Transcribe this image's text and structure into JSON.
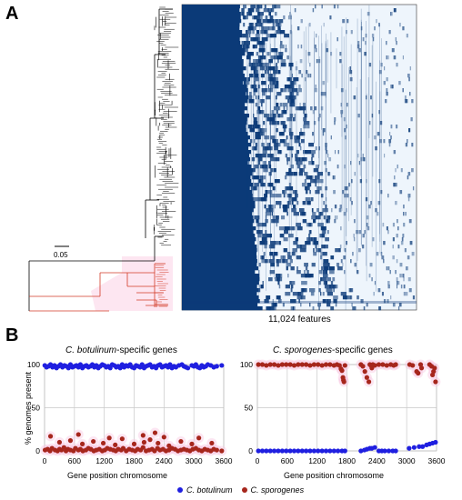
{
  "panels": {
    "a": "A",
    "b": "B"
  },
  "heatmap": {
    "caption": "11,024 features",
    "scale_label": "0.05",
    "colors": {
      "present": "#0b3a78",
      "absent": "#eef5fc",
      "tree_main": "#000000",
      "tree_highlight": "#d23a26",
      "highlight_bg": "#fde3ef"
    }
  },
  "chart_data": [
    {
      "type": "scatter",
      "title_italic": "C. botulinum",
      "title_rest": "-specific genes",
      "xlabel": "Gene position chromosome",
      "ylabel": "% genomes present",
      "xlim": [
        0,
        3600
      ],
      "ylim": [
        0,
        100
      ],
      "xticks": [
        0,
        600,
        1200,
        1800,
        2400,
        3000,
        3600
      ],
      "yticks": [
        0,
        50,
        100
      ],
      "grid": true,
      "series": [
        {
          "name": "C. botulinum",
          "color": "#1f1fe0",
          "x": [
            5,
            40,
            80,
            120,
            160,
            200,
            240,
            280,
            320,
            360,
            400,
            440,
            480,
            520,
            560,
            600,
            640,
            680,
            720,
            760,
            800,
            840,
            880,
            920,
            960,
            1000,
            1040,
            1080,
            1120,
            1160,
            1200,
            1240,
            1280,
            1320,
            1360,
            1400,
            1440,
            1480,
            1520,
            1560,
            1600,
            1640,
            1680,
            1720,
            1760,
            1800,
            1840,
            1880,
            1920,
            1960,
            2000,
            2040,
            2080,
            2120,
            2160,
            2200,
            2240,
            2280,
            2320,
            2360,
            2400,
            2440,
            2480,
            2520,
            2560,
            2600,
            2640,
            2700,
            2760,
            2800,
            2840,
            2880,
            2960,
            3000,
            3040,
            3080,
            3120,
            3160,
            3200,
            3240,
            3280,
            3340,
            3400,
            3460,
            3560
          ],
          "y": [
            99,
            97,
            98,
            100,
            97,
            99,
            96,
            98,
            100,
            97,
            99,
            98,
            96,
            100,
            97,
            98,
            99,
            97,
            100,
            96,
            98,
            99,
            97,
            98,
            100,
            97,
            99,
            96,
            98,
            100,
            99,
            97,
            98,
            96,
            100,
            99,
            97,
            98,
            96,
            100,
            97,
            99,
            98,
            100,
            97,
            96,
            99,
            98,
            97,
            100,
            96,
            98,
            99,
            100,
            97,
            98,
            96,
            99,
            100,
            97,
            98,
            99,
            97,
            100,
            96,
            98,
            97,
            99,
            100,
            98,
            97,
            96,
            99,
            98,
            100,
            97,
            96,
            99,
            97,
            98,
            100,
            99,
            97,
            98,
            99
          ]
        },
        {
          "name": "C. sporogenes",
          "color": "#a6261c",
          "x": [
            10,
            60,
            110,
            150,
            210,
            260,
            300,
            340,
            390,
            430,
            470,
            520,
            580,
            620,
            680,
            720,
            770,
            830,
            880,
            930,
            990,
            1040,
            1100,
            1160,
            1210,
            1260,
            1320,
            1380,
            1430,
            1480,
            1540,
            1580,
            1640,
            1700,
            1760,
            1820,
            1870,
            1930,
            1980,
            2040,
            2100,
            2160,
            2210,
            2270,
            2320,
            2380,
            2440,
            2500,
            2560,
            2620,
            2680,
            2740,
            2800,
            2860,
            2920,
            2980,
            3040,
            3100,
            3160,
            3220,
            3280,
            3340,
            3400,
            3460,
            3560,
            300,
            520,
            760,
            980,
            1180,
            1420,
            1560,
            1800,
            2000,
            2120,
            2280,
            2500,
            2740,
            2960,
            3360,
            120,
            680,
            1300,
            1980,
            2220,
            2400,
            3100
          ],
          "y": [
            1,
            2,
            0,
            3,
            1,
            0,
            2,
            1,
            4,
            0,
            2,
            1,
            0,
            3,
            1,
            2,
            0,
            1,
            3,
            2,
            0,
            1,
            2,
            0,
            1,
            3,
            2,
            1,
            0,
            2,
            1,
            3,
            0,
            2,
            1,
            0,
            2,
            1,
            4,
            0,
            1,
            2,
            0,
            3,
            1,
            2,
            0,
            1,
            3,
            2,
            0,
            1,
            2,
            1,
            0,
            2,
            3,
            1,
            0,
            2,
            1,
            0,
            2,
            1,
            0,
            10,
            12,
            8,
            11,
            9,
            7,
            14,
            8,
            10,
            13,
            9,
            6,
            11,
            8,
            9,
            17,
            19,
            15,
            18,
            21,
            16,
            15
          ]
        }
      ]
    },
    {
      "type": "scatter",
      "title_italic": "C. sporogenes",
      "title_rest": "-specific genes",
      "xlabel": "Gene position chromosome",
      "ylabel": "",
      "xlim": [
        0,
        3600
      ],
      "ylim": [
        0,
        100
      ],
      "xticks": [
        0,
        600,
        1200,
        1800,
        2400,
        3000,
        3600
      ],
      "yticks": [
        0,
        50,
        100
      ],
      "grid": true,
      "series": [
        {
          "name": "C. sporogenes",
          "color": "#a6261c",
          "x": [
            20,
            100,
            180,
            260,
            340,
            420,
            500,
            580,
            660,
            740,
            820,
            900,
            980,
            1060,
            1140,
            1220,
            1300,
            1380,
            1460,
            1540,
            1600,
            1650,
            1680,
            1700,
            1720,
            1730,
            1740,
            1760,
            2080,
            2120,
            2160,
            2200,
            2240,
            2260,
            2280,
            2300,
            2320,
            2360,
            2440,
            2520,
            2600,
            2680,
            2740,
            2780,
            3060,
            3120,
            3200,
            3230,
            3280,
            3300,
            3460,
            3500,
            3540,
            3560,
            3580,
            3520
          ],
          "y": [
            100,
            100,
            99,
            100,
            100,
            99,
            100,
            100,
            100,
            99,
            100,
            100,
            100,
            99,
            100,
            100,
            99,
            100,
            100,
            99,
            100,
            99,
            95,
            93,
            85,
            82,
            80,
            99,
            100,
            98,
            92,
            85,
            80,
            100,
            99,
            96,
            100,
            99,
            100,
            100,
            99,
            100,
            99,
            100,
            100,
            99,
            92,
            90,
            100,
            96,
            100,
            98,
            92,
            96,
            80,
            88
          ]
        },
        {
          "name": "C. botulinum",
          "color": "#1f1fe0",
          "x": [
            20,
            100,
            180,
            260,
            340,
            420,
            500,
            580,
            660,
            740,
            820,
            900,
            980,
            1060,
            1140,
            1220,
            1300,
            1380,
            1460,
            1540,
            1620,
            1700,
            1760,
            2080,
            2150,
            2200,
            2260,
            2300,
            2360,
            2440,
            2500,
            2560,
            2640,
            2720,
            2780,
            3050,
            3150,
            3250,
            3320,
            3400,
            3460,
            3520,
            3580
          ],
          "y": [
            0,
            0,
            0,
            0,
            0,
            0,
            0,
            0,
            0,
            0,
            0,
            0,
            0,
            0,
            0,
            0,
            0,
            0,
            0,
            0,
            0,
            0,
            0,
            0,
            1,
            2,
            3,
            3,
            4,
            0,
            0,
            0,
            0,
            0,
            0,
            3,
            4,
            5,
            5,
            7,
            8,
            9,
            10
          ]
        }
      ]
    }
  ],
  "legend": [
    {
      "name": "C. botulinum",
      "color": "#1f1fe0"
    },
    {
      "name": "C. sporogenes",
      "color": "#a6261c"
    }
  ]
}
